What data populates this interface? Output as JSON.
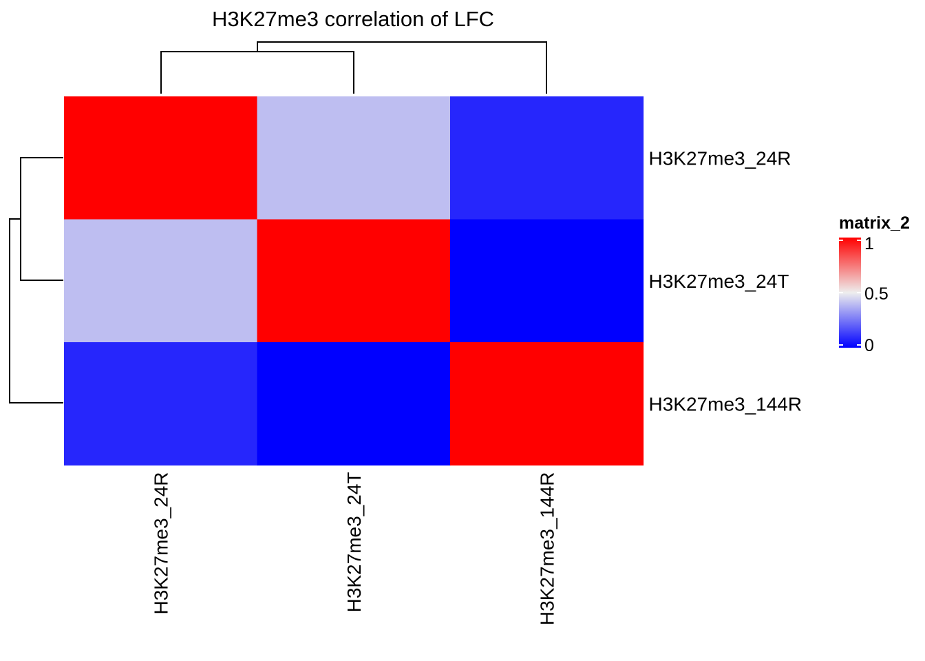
{
  "chart_data": {
    "type": "heatmap",
    "title": "H3K27me3 correlation of LFC",
    "rows": [
      "H3K27me3_24R",
      "H3K27me3_24T",
      "H3K27me3_144R"
    ],
    "columns": [
      "H3K27me3_24R",
      "H3K27me3_24T",
      "H3K27me3_144R"
    ],
    "values": [
      [
        1.0,
        0.4,
        0.08
      ],
      [
        0.4,
        1.0,
        0.0
      ],
      [
        0.08,
        0.0,
        1.0
      ]
    ],
    "legend": {
      "title": "matrix_2",
      "ticks": [
        "1",
        "0.5",
        "0"
      ],
      "range": [
        0,
        1
      ],
      "colors": {
        "low": "#0000FF",
        "mid": "#EEEEEE",
        "high": "#FF0000"
      }
    },
    "row_dendrogram": true,
    "column_dendrogram": true
  }
}
